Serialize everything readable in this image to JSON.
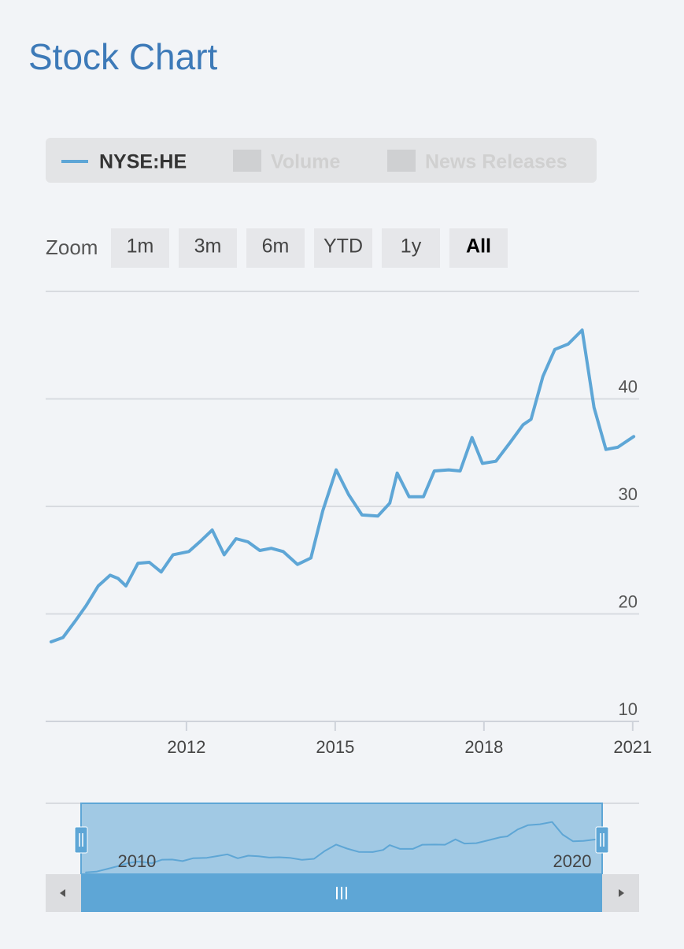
{
  "page": {
    "title": "Stock Chart",
    "zoom_label": "Zoom",
    "zoom_buttons": [
      {
        "label": "1m"
      },
      {
        "label": "3m"
      },
      {
        "label": "6m"
      },
      {
        "label": "YTD"
      },
      {
        "label": "1y"
      },
      {
        "label": "All",
        "selected": true
      }
    ],
    "inactive_legend": [
      "Volume",
      "News Releases"
    ]
  },
  "chart_data": {
    "type": "line",
    "x": [
      2009.27,
      2009.51,
      2009.75,
      2009.98,
      2010.22,
      2010.46,
      2010.62,
      2010.78,
      2011.02,
      2011.25,
      2011.49,
      2011.73,
      2012.05,
      2012.29,
      2012.52,
      2012.76,
      2013.0,
      2013.24,
      2013.48,
      2013.71,
      2013.95,
      2014.24,
      2014.51,
      2014.75,
      2015.02,
      2015.27,
      2015.54,
      2015.86,
      2016.1,
      2016.25,
      2016.49,
      2016.78,
      2017.0,
      2017.29,
      2017.52,
      2017.76,
      2017.97,
      2018.24,
      2018.52,
      2018.79,
      2018.95,
      2019.19,
      2019.43,
      2019.7,
      2019.98,
      2020.22,
      2020.46,
      2020.7,
      2021.02
    ],
    "series": [
      {
        "name": "NYSE:HE",
        "color": "#5ea6d6",
        "values": [
          17.4,
          17.8,
          19.3,
          20.8,
          22.6,
          23.6,
          23.3,
          22.6,
          24.7,
          24.8,
          23.9,
          25.5,
          25.8,
          26.8,
          27.8,
          25.5,
          27.0,
          26.7,
          25.9,
          26.1,
          25.8,
          24.6,
          25.2,
          29.6,
          33.4,
          31.1,
          29.2,
          29.1,
          30.3,
          33.1,
          30.9,
          30.9,
          33.3,
          33.4,
          33.3,
          36.4,
          34.0,
          34.2,
          35.9,
          37.6,
          38.1,
          42.1,
          44.6,
          45.1,
          46.4,
          39.2,
          35.3,
          35.5,
          36.5
        ]
      }
    ],
    "xlim": [
      2009.16,
      2021.13
    ],
    "xticks": [
      2012,
      2015,
      2018,
      2021
    ],
    "ylim": [
      10,
      50
    ],
    "yticks": [
      10,
      20,
      30,
      40
    ],
    "grid": true,
    "navigator_xticks": [
      2010,
      2020
    ]
  }
}
